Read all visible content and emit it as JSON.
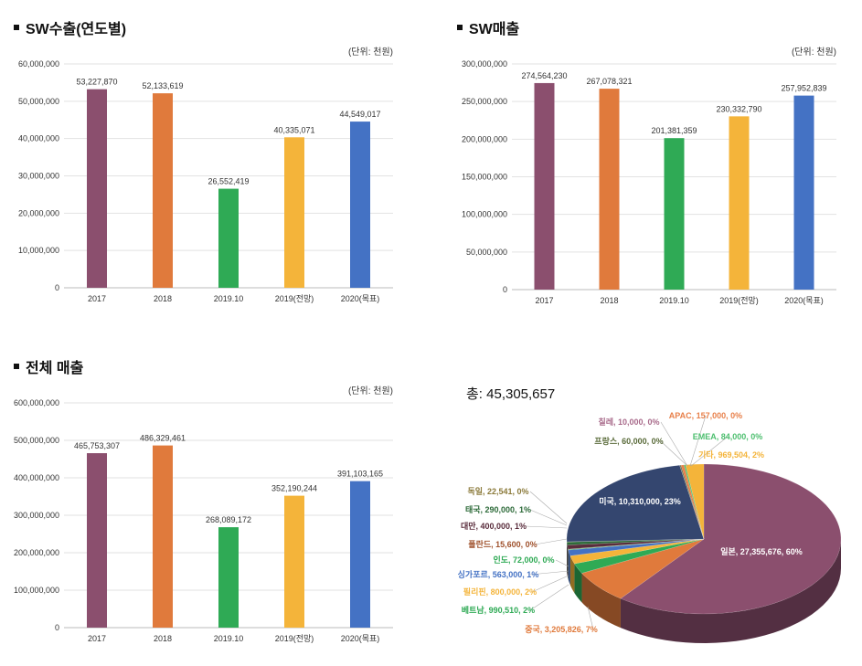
{
  "chart_data": [
    {
      "type": "bar",
      "title": "SW수출(연도별)",
      "unit": "(단위: 천원)",
      "categories": [
        "2017",
        "2018",
        "2019.10",
        "2019(전망)",
        "2020(목표)"
      ],
      "values": [
        53227870,
        52133619,
        26552419,
        40335071,
        44549017
      ],
      "labels": [
        "53,227,870",
        "52,133,619",
        "26,552,419",
        "40,335,071",
        "44,549,017"
      ],
      "ylim": [
        0,
        60000000
      ],
      "yticks": [
        "0",
        "10,000,000",
        "20,000,000",
        "30,000,000",
        "40,000,000",
        "50,000,000",
        "60,000,000"
      ],
      "colors": [
        "#8B4F6E",
        "#E07A3C",
        "#2FAA55",
        "#F4B43A",
        "#4472C4"
      ],
      "grid": true
    },
    {
      "type": "bar",
      "title": "SW매출",
      "unit": "(단위: 천원)",
      "categories": [
        "2017",
        "2018",
        "2019.10",
        "2019(전망)",
        "2020(목표)"
      ],
      "values": [
        274564230,
        267078321,
        201381359,
        230332790,
        257952839
      ],
      "labels": [
        "274,564,230",
        "267,078,321",
        "201,381,359",
        "230,332,790",
        "257,952,839"
      ],
      "ylim": [
        0,
        300000000
      ],
      "yticks": [
        "0",
        "50,000,000",
        "100,000,000",
        "150,000,000",
        "200,000,000",
        "250,000,000",
        "300,000,000"
      ],
      "colors": [
        "#8B4F6E",
        "#E07A3C",
        "#2FAA55",
        "#F4B43A",
        "#4472C4"
      ],
      "grid": true
    },
    {
      "type": "bar",
      "title": "전체 매출",
      "unit": "(단위: 천원)",
      "categories": [
        "2017",
        "2018",
        "2019.10",
        "2019(전망)",
        "2020(목표)"
      ],
      "values": [
        465753307,
        486329461,
        268089172,
        352190244,
        391103165
      ],
      "labels": [
        "465,753,307",
        "486,329,461",
        "268,089,172",
        "352,190,244",
        "391,103,165"
      ],
      "ylim": [
        0,
        600000000
      ],
      "yticks": [
        "0",
        "100,000,000",
        "200,000,000",
        "300,000,000",
        "400,000,000",
        "500,000,000",
        "600,000,000"
      ],
      "colors": [
        "#8B4F6E",
        "#E07A3C",
        "#2FAA55",
        "#F4B43A",
        "#4472C4"
      ],
      "grid": true
    },
    {
      "type": "pie",
      "title": "총: 45,305,657",
      "slices": [
        {
          "name": "일본",
          "value": 27355676,
          "label": "일본, 27,355,676, 60%",
          "color": "#8B4F6E"
        },
        {
          "name": "중국",
          "value": 3205826,
          "label": "중국, 3,205,826, 7%",
          "color": "#E07A3C"
        },
        {
          "name": "베트남",
          "value": 990510,
          "label": "베트남, 990,510, 2%",
          "color": "#2FAA55"
        },
        {
          "name": "필리핀",
          "value": 800000,
          "label": "필리핀, 800,000, 2%",
          "color": "#F4B43A"
        },
        {
          "name": "싱가포르",
          "value": 563000,
          "label": "싱가포르, 563,000, 1%",
          "color": "#4472C4"
        },
        {
          "name": "인도",
          "value": 72000,
          "label": "인도, 72,000, 0%",
          "color": "#3DAA5C"
        },
        {
          "name": "폴란드",
          "value": 15600,
          "label": "폴란드, 15,600, 0%",
          "color": "#A0522D"
        },
        {
          "name": "대만",
          "value": 400000,
          "label": "대만, 400,000, 1%",
          "color": "#5A2D3C"
        },
        {
          "name": "태국",
          "value": 290000,
          "label": "태국, 290,000, 1%",
          "color": "#2E6B3A"
        },
        {
          "name": "독일",
          "value": 22541,
          "label": "독일, 22,541, 0%",
          "color": "#8B7A3A"
        },
        {
          "name": "미국",
          "value": 10310000,
          "label": "미국, 10,310,000, 23%",
          "color": "#34466F"
        },
        {
          "name": "칠레",
          "value": 10000,
          "label": "칠레, 10,000, 0%",
          "color": "#A86A8A"
        },
        {
          "name": "프랑스",
          "value": 60000,
          "label": "프랑스, 60,000, 0%",
          "color": "#5A6B3A"
        },
        {
          "name": "APAC",
          "value": 157000,
          "label": "APAC, 157,000, 0%",
          "color": "#E8804A"
        },
        {
          "name": "EMEA",
          "value": 84000,
          "label": "EMEA, 84,000, 0%",
          "color": "#4DBF6F"
        },
        {
          "name": "기타",
          "value": 969504,
          "label": "기타, 969,504, 2%",
          "color": "#F4B43A"
        }
      ]
    }
  ]
}
